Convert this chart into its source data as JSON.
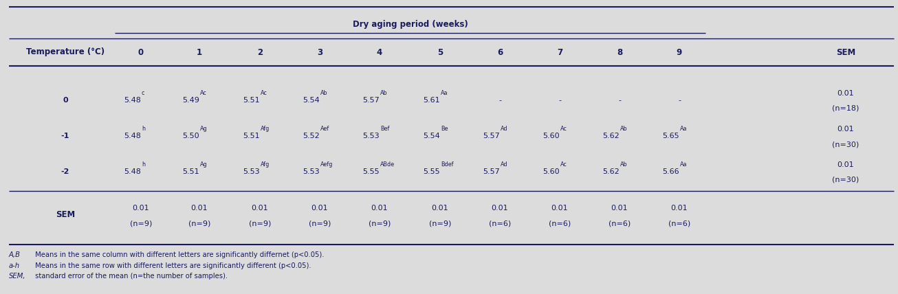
{
  "title": "Dry aging period (weeks)",
  "temp_col_label": "Temperature (°C)",
  "weeks": [
    "0",
    "1",
    "2",
    "3",
    "4",
    "5",
    "6",
    "7",
    "8",
    "9"
  ],
  "sem_label": "SEM",
  "rows": [
    {
      "temp": "0",
      "base": [
        "5.48",
        "5.49",
        "5.51",
        "5.54",
        "5.57",
        "5.61",
        "-",
        "-",
        "-",
        "-"
      ],
      "sup": [
        "c",
        "Ac",
        "Ac",
        "Ab",
        "Ab",
        "Aa",
        "",
        "",
        "",
        ""
      ],
      "sem_val": "0.01",
      "sem_n": "(n=18)"
    },
    {
      "temp": "-1",
      "base": [
        "5.48",
        "5.50",
        "5.51",
        "5.52",
        "5.53",
        "5.54",
        "5.57",
        "5.60",
        "5.62",
        "5.65"
      ],
      "sup": [
        "h",
        "Ag",
        "Afg",
        "Aef",
        "Bef",
        "Be",
        "Ad",
        "Ac",
        "Ab",
        "Aa"
      ],
      "sem_val": "0.01",
      "sem_n": "(n=30)"
    },
    {
      "temp": "-2",
      "base": [
        "5.48",
        "5.51",
        "5.53",
        "5.53",
        "5.55",
        "5.55",
        "5.57",
        "5.60",
        "5.62",
        "5.66"
      ],
      "sup": [
        "h",
        "Ag",
        "Afg",
        "Aefg",
        "ABde",
        "Bdef",
        "Ad",
        "Ac",
        "Ab",
        "Aa"
      ],
      "sem_val": "0.01",
      "sem_n": "(n=30)"
    }
  ],
  "sem_row": {
    "vals": [
      "0.01",
      "0.01",
      "0.01",
      "0.01",
      "0.01",
      "0.01",
      "0.01",
      "0.01",
      "0.01",
      "0.01"
    ],
    "ns": [
      "(n=9)",
      "(n=9)",
      "(n=9)",
      "(n=9)",
      "(n=9)",
      "(n=9)",
      "(n=6)",
      "(n=6)",
      "(n=6)",
      "(n=6)"
    ]
  },
  "footnotes": [
    [
      "A,B",
      " Means in the same column with different letters are significantly differnet (p<0.05)."
    ],
    [
      "a-h",
      " Means in the same row with different letters are significantly different (p<0.05)."
    ],
    [
      "SEM,",
      " standard error of the mean (n=the number of samples)."
    ]
  ],
  "bg_color": "#dcdcdc",
  "text_color": "#1a1a5e",
  "line_color": "#1a1a5e",
  "header_fontsize": 8.5,
  "cell_fontsize": 8.0,
  "footnote_fontsize": 7.2
}
